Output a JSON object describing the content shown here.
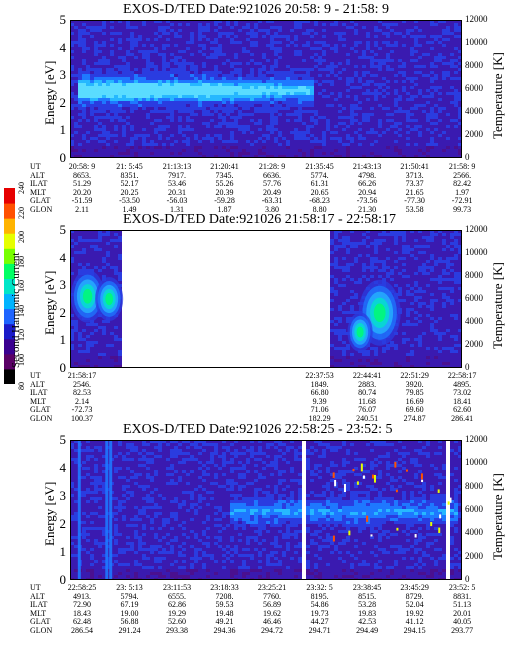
{
  "colorbar": {
    "label": "Second Harmonic Current",
    "ticks": [
      "80",
      "100",
      "120",
      "140",
      "160",
      "180",
      "200",
      "220",
      "240"
    ],
    "colors": [
      "#000000",
      "#5a0066",
      "#3a0090",
      "#1a1ac8",
      "#1e64ff",
      "#00b4ff",
      "#00e6c8",
      "#00ff64",
      "#78ff00",
      "#e6ff00",
      "#ffb400",
      "#ff5000",
      "#e60000"
    ]
  },
  "chart_data": [
    {
      "type": "heatmap",
      "title": "EXOS-D/TED   Date:921026  20:58: 9 - 21:58: 9",
      "ylabel": "Energy [eV]",
      "y2label": "Temperature [K]",
      "ylim": [
        0,
        5
      ],
      "y2lim": [
        0,
        12000
      ],
      "yticks": [
        "0",
        "1",
        "2",
        "3",
        "4",
        "5"
      ],
      "y2ticks": [
        "0",
        "2000",
        "4000",
        "6000",
        "8000",
        "10000",
        "12000"
      ],
      "gaps": [],
      "bands": [
        {
          "x0": 0.02,
          "x1": 0.62,
          "y": 2.5,
          "w": 0.45,
          "intensity": "high"
        },
        {
          "x0": 0.02,
          "x1": 0.62,
          "y": 2.5,
          "w": 0.9,
          "intensity": "mid"
        }
      ],
      "ephemeris": {
        "labels": [
          "UT",
          "ALT",
          "ILAT",
          "MLT",
          "GLAT",
          "GLON"
        ],
        "columns": [
          [
            "20:58: 9",
            "8653.",
            "51.29",
            "20.20",
            "-51.59",
            "2.11"
          ],
          [
            "21: 5:45",
            "8351.",
            "52.17",
            "20.25",
            "-53.50",
            "1.49"
          ],
          [
            "21:13:13",
            "7917.",
            "53.46",
            "20.31",
            "-56.03",
            "1.31"
          ],
          [
            "21:20:41",
            "7345.",
            "55.26",
            "20.39",
            "-59.28",
            "1.87"
          ],
          [
            "21:28: 9",
            "6636.",
            "57.76",
            "20.49",
            "-63.31",
            "3.80"
          ],
          [
            "21:35:45",
            "5774.",
            "61.31",
            "20.65",
            "-68.23",
            "8.80"
          ],
          [
            "21:43:13",
            "4798.",
            "66.26",
            "20.94",
            "-73.56",
            "21.30"
          ],
          [
            "21:50:41",
            "3713.",
            "73.37",
            "21.65",
            "-77.30",
            "53.58"
          ],
          [
            "21:58: 9",
            "2566.",
            "82.42",
            "1.97",
            "-72.91",
            "99.73"
          ]
        ]
      }
    },
    {
      "type": "heatmap",
      "title": "EXOS-D/TED   Date:921026  21:58:17 - 22:58:17",
      "ylabel": "Energy [eV]",
      "y2label": "Temperature [K]",
      "ylim": [
        0,
        5
      ],
      "y2lim": [
        0,
        12000
      ],
      "yticks": [
        "0",
        "1",
        "2",
        "3",
        "4",
        "5"
      ],
      "y2ticks": [
        "0",
        "2000",
        "4000",
        "6000",
        "8000",
        "10000",
        "12000"
      ],
      "gaps": [
        [
          0.125,
          0.655
        ]
      ],
      "bands": [],
      "ephemeris": {
        "labels": [
          "UT",
          "ALT",
          "ILAT",
          "MLT",
          "GLAT",
          "GLON"
        ],
        "columns": [
          [
            "21:58:17",
            "2546.",
            "82.53",
            "2.14",
            "-72.73",
            "100.37"
          ],
          [
            "",
            "",
            "",
            "",
            "",
            ""
          ],
          [
            "",
            "",
            "",
            "",
            "",
            ""
          ],
          [
            "",
            "",
            "",
            "",
            "",
            ""
          ],
          [
            "",
            "",
            "",
            "",
            "",
            ""
          ],
          [
            "22:37:53",
            "1849.",
            "66.80",
            "9.39",
            "71.06",
            "182.29"
          ],
          [
            "22:44:41",
            "2883.",
            "80.74",
            "11.68",
            "76.07",
            "240.51"
          ],
          [
            "22:51:29",
            "3920.",
            "79.85",
            "16.69",
            "69.60",
            "274.87"
          ],
          [
            "22:58:17",
            "4895.",
            "73.02",
            "18.41",
            "62.60",
            "286.41"
          ]
        ]
      }
    },
    {
      "type": "heatmap",
      "title": "EXOS-D/TED   Date:921026  22:58:25 - 23:52: 5",
      "ylabel": "Energy [eV]",
      "y2label": "Temperature [K]",
      "ylim": [
        0,
        5
      ],
      "y2lim": [
        0,
        12000
      ],
      "yticks": [
        "0",
        "1",
        "2",
        "3",
        "4",
        "5"
      ],
      "y2ticks": [
        "0",
        "2000",
        "4000",
        "6000",
        "8000",
        "10000",
        "12000"
      ],
      "gaps": [
        [
          0.59,
          0.598
        ],
        [
          0.955,
          0.965
        ]
      ],
      "bands": [
        {
          "x0": 0.4,
          "x1": 0.98,
          "y": 2.5,
          "w": 0.6,
          "intensity": "mid"
        }
      ],
      "ephemeris": {
        "labels": [
          "UT",
          "ALT",
          "ILAT",
          "MLT",
          "GLAT",
          "GLON"
        ],
        "columns": [
          [
            "22:58:25",
            "4913.",
            "72.90",
            "18.43",
            "62.48",
            "286.54"
          ],
          [
            "23: 5:13",
            "5794.",
            "67.19",
            "19.00",
            "56.88",
            "291.24"
          ],
          [
            "23:11:53",
            "6555.",
            "62.86",
            "19.29",
            "52.60",
            "293.38"
          ],
          [
            "23:18:33",
            "7208.",
            "59.53",
            "19.48",
            "49.21",
            "294.36"
          ],
          [
            "23:25:21",
            "7760.",
            "56.89",
            "19.62",
            "46.46",
            "294.72"
          ],
          [
            "23:32: 5",
            "8195.",
            "54.86",
            "19.73",
            "44.27",
            "294.71"
          ],
          [
            "23:38:45",
            "8515.",
            "53.28",
            "19.83",
            "42.53",
            "294.49"
          ],
          [
            "23:45:29",
            "8729.",
            "52.04",
            "19.92",
            "41.12",
            "294.15"
          ],
          [
            "23:52: 5",
            "8831.",
            "51.13",
            "20.01",
            "40.05",
            "293.77"
          ]
        ]
      }
    }
  ]
}
